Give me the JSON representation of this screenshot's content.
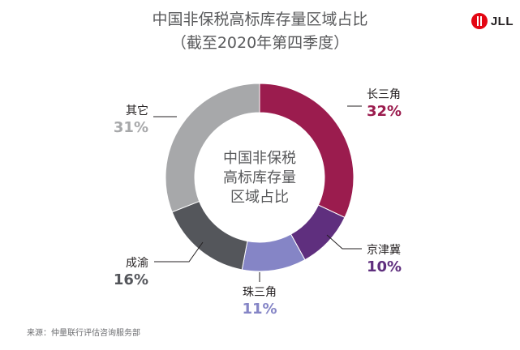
{
  "title": "中国非保税高标库存量区域占比",
  "subtitle": "（截至2020年第四季度）",
  "logo": {
    "text": "JLL"
  },
  "source": "来源：仲量联行评估咨询服务部",
  "chart_data": {
    "type": "pie",
    "donut": true,
    "center_label": [
      "中国非保税",
      "高标库存量",
      "区域占比"
    ],
    "slices": [
      {
        "name": "长三角",
        "value": 32,
        "label": "32%",
        "color": "#9b1c4e"
      },
      {
        "name": "京津冀",
        "value": 10,
        "label": "10%",
        "color": "#5f2f7e"
      },
      {
        "name": "珠三角",
        "value": 11,
        "label": "11%",
        "color": "#8585c6"
      },
      {
        "name": "成渝",
        "value": 16,
        "label": "16%",
        "color": "#54565b"
      },
      {
        "name": "其它",
        "value": 31,
        "label": "31%",
        "color": "#a7a8aa"
      }
    ]
  }
}
